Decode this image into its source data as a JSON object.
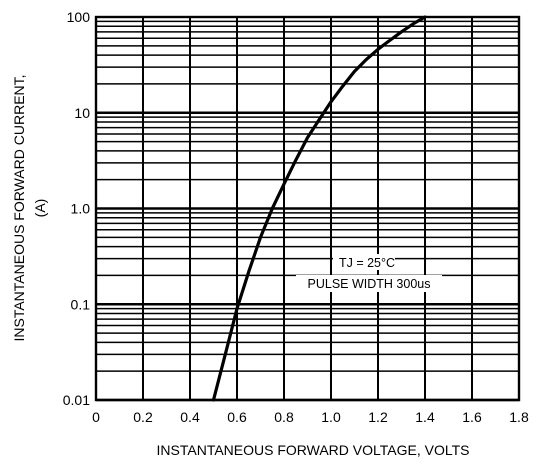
{
  "chart_data": {
    "type": "line",
    "title": "",
    "xlabel": "INSTANTANEOUS FORWARD VOLTAGE, VOLTS",
    "ylabel_line1": "INSTANTANEOUS FORWARD CURRENT,",
    "ylabel_line2": "(A)",
    "xlim": [
      0,
      1.8
    ],
    "ylim": [
      0.01,
      100
    ],
    "yscale": "log",
    "grid": true,
    "legend": "none",
    "x_ticks": [
      0,
      0.2,
      0.4,
      0.6,
      0.8,
      1.0,
      1.2,
      1.4,
      1.6,
      1.8
    ],
    "x_tick_labels": [
      "0",
      "0.2",
      "0.4",
      "0.6",
      "0.8",
      "1.0",
      "1.2",
      "1.4",
      "1.6",
      "1.8"
    ],
    "y_ticks": [
      0.01,
      0.1,
      1,
      10,
      100
    ],
    "y_tick_labels": [
      "0.01",
      "0.1",
      "1.0",
      "10",
      "100"
    ],
    "annotations": [
      "TJ = 25°C",
      "PULSE WIDTH 300us"
    ],
    "series": [
      {
        "x": [
          0.5,
          0.55,
          0.6,
          0.65,
          0.7,
          0.75,
          0.8,
          0.85,
          0.9,
          0.95,
          1.0,
          1.05,
          1.1,
          1.15,
          1.2,
          1.25,
          1.3,
          1.35,
          1.4
        ],
        "y": [
          0.01,
          0.03,
          0.09,
          0.22,
          0.5,
          1.0,
          1.8,
          3.2,
          5.5,
          8.5,
          13,
          19,
          27,
          36,
          46,
          57,
          70,
          85,
          100
        ]
      }
    ],
    "colors": {
      "line": "#000000",
      "grid": "#000000",
      "background": "#ffffff"
    }
  }
}
